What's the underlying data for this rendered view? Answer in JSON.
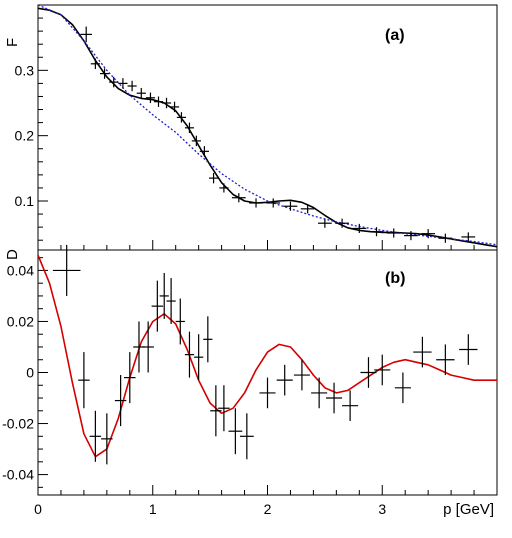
{
  "chart_data": [
    {
      "panel": "(a)",
      "type": "scatter",
      "ylabel": "F",
      "xlim": [
        0,
        4.0
      ],
      "ylim": [
        0.025,
        0.4
      ],
      "yticks": [
        0.1,
        0.2,
        0.3
      ],
      "ytick_labels": [
        "0.1",
        "0.2",
        "0.3"
      ],
      "points": [
        {
          "x": 0.42,
          "y": 0.355,
          "xerr": 0.05,
          "yerr": 0.012
        },
        {
          "x": 0.5,
          "y": 0.31,
          "xerr": 0.04,
          "yerr": 0.008
        },
        {
          "x": 0.58,
          "y": 0.295,
          "xerr": 0.04,
          "yerr": 0.008
        },
        {
          "x": 0.66,
          "y": 0.282,
          "xerr": 0.04,
          "yerr": 0.008
        },
        {
          "x": 0.74,
          "y": 0.28,
          "xerr": 0.04,
          "yerr": 0.008
        },
        {
          "x": 0.82,
          "y": 0.276,
          "xerr": 0.04,
          "yerr": 0.008
        },
        {
          "x": 0.9,
          "y": 0.265,
          "xerr": 0.04,
          "yerr": 0.008
        },
        {
          "x": 0.98,
          "y": 0.258,
          "xerr": 0.04,
          "yerr": 0.008
        },
        {
          "x": 1.05,
          "y": 0.252,
          "xerr": 0.04,
          "yerr": 0.008
        },
        {
          "x": 1.12,
          "y": 0.25,
          "xerr": 0.04,
          "yerr": 0.008
        },
        {
          "x": 1.19,
          "y": 0.244,
          "xerr": 0.04,
          "yerr": 0.008
        },
        {
          "x": 1.25,
          "y": 0.228,
          "xerr": 0.04,
          "yerr": 0.008
        },
        {
          "x": 1.32,
          "y": 0.212,
          "xerr": 0.04,
          "yerr": 0.008
        },
        {
          "x": 1.38,
          "y": 0.192,
          "xerr": 0.04,
          "yerr": 0.008
        },
        {
          "x": 1.45,
          "y": 0.176,
          "xerr": 0.04,
          "yerr": 0.008
        },
        {
          "x": 1.53,
          "y": 0.135,
          "xerr": 0.04,
          "yerr": 0.008
        },
        {
          "x": 1.62,
          "y": 0.12,
          "xerr": 0.04,
          "yerr": 0.007
        },
        {
          "x": 1.75,
          "y": 0.105,
          "xerr": 0.06,
          "yerr": 0.007
        },
        {
          "x": 1.9,
          "y": 0.097,
          "xerr": 0.06,
          "yerr": 0.007
        },
        {
          "x": 2.05,
          "y": 0.097,
          "xerr": 0.06,
          "yerr": 0.007
        },
        {
          "x": 2.2,
          "y": 0.092,
          "xerr": 0.06,
          "yerr": 0.007
        },
        {
          "x": 2.35,
          "y": 0.088,
          "xerr": 0.06,
          "yerr": 0.007
        },
        {
          "x": 2.5,
          "y": 0.066,
          "xerr": 0.06,
          "yerr": 0.007
        },
        {
          "x": 2.65,
          "y": 0.066,
          "xerr": 0.06,
          "yerr": 0.007
        },
        {
          "x": 2.8,
          "y": 0.058,
          "xerr": 0.06,
          "yerr": 0.007
        },
        {
          "x": 2.95,
          "y": 0.053,
          "xerr": 0.06,
          "yerr": 0.007
        },
        {
          "x": 3.1,
          "y": 0.051,
          "xerr": 0.06,
          "yerr": 0.007
        },
        {
          "x": 3.25,
          "y": 0.047,
          "xerr": 0.06,
          "yerr": 0.007
        },
        {
          "x": 3.4,
          "y": 0.05,
          "xerr": 0.06,
          "yerr": 0.007
        },
        {
          "x": 3.55,
          "y": 0.043,
          "xerr": 0.06,
          "yerr": 0.007
        },
        {
          "x": 3.75,
          "y": 0.045,
          "xerr": 0.06,
          "yerr": 0.007
        }
      ],
      "curves": [
        {
          "style": "solid",
          "color": "#000000",
          "x": [
            0.0,
            0.1,
            0.2,
            0.3,
            0.4,
            0.5,
            0.6,
            0.7,
            0.8,
            0.9,
            1.0,
            1.1,
            1.2,
            1.3,
            1.4,
            1.5,
            1.6,
            1.7,
            1.8,
            1.9,
            2.0,
            2.1,
            2.2,
            2.3,
            2.4,
            2.5,
            2.6,
            2.7,
            2.8,
            2.9,
            3.0,
            3.1,
            3.2,
            3.3,
            3.4,
            3.5,
            3.6,
            3.7,
            3.8,
            3.9,
            4.0
          ],
          "y": [
            0.395,
            0.392,
            0.385,
            0.37,
            0.345,
            0.315,
            0.29,
            0.272,
            0.262,
            0.257,
            0.255,
            0.25,
            0.238,
            0.215,
            0.185,
            0.155,
            0.128,
            0.11,
            0.1,
            0.097,
            0.098,
            0.1,
            0.101,
            0.098,
            0.09,
            0.078,
            0.067,
            0.059,
            0.055,
            0.053,
            0.052,
            0.052,
            0.051,
            0.05,
            0.048,
            0.045,
            0.042,
            0.039,
            0.036,
            0.033,
            0.03
          ]
        },
        {
          "style": "dotted",
          "color": "#1f1fcf",
          "x": [
            0.0,
            0.2,
            0.4,
            0.6,
            0.8,
            1.0,
            1.2,
            1.4,
            1.6,
            1.8,
            2.0,
            2.2,
            2.4,
            2.6,
            2.8,
            3.0,
            3.2,
            3.4,
            3.6,
            3.8,
            4.0
          ],
          "y": [
            0.4,
            0.385,
            0.345,
            0.3,
            0.262,
            0.232,
            0.205,
            0.172,
            0.142,
            0.118,
            0.1,
            0.088,
            0.077,
            0.068,
            0.061,
            0.055,
            0.05,
            0.046,
            0.042,
            0.038,
            0.033
          ]
        }
      ]
    },
    {
      "panel": "(b)",
      "type": "scatter",
      "ylabel": "D",
      "xlabel": "p [GeV]",
      "xlim": [
        0,
        4.0
      ],
      "ylim": [
        -0.048,
        0.048
      ],
      "xticks": [
        0,
        1,
        2,
        3
      ],
      "xtick_labels": [
        "0",
        "1",
        "2",
        "3"
      ],
      "yticks": [
        -0.04,
        -0.02,
        0,
        0.02,
        0.04
      ],
      "ytick_labels": [
        "-0.04",
        "-0.02",
        "0",
        "0.02",
        "0.04"
      ],
      "points": [
        {
          "x": 0.25,
          "y": 0.04,
          "xerr": 0.12,
          "yerr": 0.01
        },
        {
          "x": 0.4,
          "y": -0.003,
          "xerr": 0.05,
          "yerr": 0.011
        },
        {
          "x": 0.5,
          "y": -0.025,
          "xerr": 0.05,
          "yerr": 0.01
        },
        {
          "x": 0.6,
          "y": -0.026,
          "xerr": 0.05,
          "yerr": 0.01
        },
        {
          "x": 0.72,
          "y": -0.011,
          "xerr": 0.05,
          "yerr": 0.01
        },
        {
          "x": 0.8,
          "y": -0.002,
          "xerr": 0.05,
          "yerr": 0.01
        },
        {
          "x": 0.88,
          "y": 0.01,
          "xerr": 0.05,
          "yerr": 0.01
        },
        {
          "x": 0.96,
          "y": 0.01,
          "xerr": 0.05,
          "yerr": 0.01
        },
        {
          "x": 1.04,
          "y": 0.026,
          "xerr": 0.05,
          "yerr": 0.01
        },
        {
          "x": 1.1,
          "y": 0.03,
          "xerr": 0.04,
          "yerr": 0.009
        },
        {
          "x": 1.16,
          "y": 0.028,
          "xerr": 0.04,
          "yerr": 0.009
        },
        {
          "x": 1.24,
          "y": 0.02,
          "xerr": 0.04,
          "yerr": 0.009
        },
        {
          "x": 1.32,
          "y": 0.007,
          "xerr": 0.04,
          "yerr": 0.009
        },
        {
          "x": 1.4,
          "y": 0.006,
          "xerr": 0.04,
          "yerr": 0.009
        },
        {
          "x": 1.48,
          "y": 0.013,
          "xerr": 0.04,
          "yerr": 0.009
        },
        {
          "x": 1.55,
          "y": -0.015,
          "xerr": 0.05,
          "yerr": 0.01
        },
        {
          "x": 1.62,
          "y": -0.014,
          "xerr": 0.05,
          "yerr": 0.009
        },
        {
          "x": 1.72,
          "y": -0.023,
          "xerr": 0.06,
          "yerr": 0.009
        },
        {
          "x": 1.82,
          "y": -0.025,
          "xerr": 0.06,
          "yerr": 0.009
        },
        {
          "x": 2.0,
          "y": -0.008,
          "xerr": 0.07,
          "yerr": 0.006
        },
        {
          "x": 2.15,
          "y": -0.003,
          "xerr": 0.07,
          "yerr": 0.006
        },
        {
          "x": 2.3,
          "y": -0.001,
          "xerr": 0.07,
          "yerr": 0.006
        },
        {
          "x": 2.45,
          "y": -0.008,
          "xerr": 0.07,
          "yerr": 0.006
        },
        {
          "x": 2.58,
          "y": -0.01,
          "xerr": 0.07,
          "yerr": 0.006
        },
        {
          "x": 2.72,
          "y": -0.013,
          "xerr": 0.07,
          "yerr": 0.006
        },
        {
          "x": 2.88,
          "y": 0.0,
          "xerr": 0.07,
          "yerr": 0.006
        },
        {
          "x": 3.0,
          "y": 0.001,
          "xerr": 0.07,
          "yerr": 0.006
        },
        {
          "x": 3.18,
          "y": -0.006,
          "xerr": 0.07,
          "yerr": 0.006
        },
        {
          "x": 3.35,
          "y": 0.008,
          "xerr": 0.08,
          "yerr": 0.006
        },
        {
          "x": 3.55,
          "y": 0.005,
          "xerr": 0.08,
          "yerr": 0.006
        },
        {
          "x": 3.75,
          "y": 0.009,
          "xerr": 0.08,
          "yerr": 0.006
        }
      ],
      "curves": [
        {
          "style": "solid",
          "color": "#d40000",
          "x": [
            0.0,
            0.1,
            0.2,
            0.3,
            0.4,
            0.5,
            0.6,
            0.7,
            0.8,
            0.9,
            1.0,
            1.1,
            1.2,
            1.3,
            1.4,
            1.5,
            1.6,
            1.7,
            1.8,
            1.9,
            2.0,
            2.1,
            2.2,
            2.3,
            2.4,
            2.5,
            2.6,
            2.7,
            2.8,
            2.9,
            3.0,
            3.1,
            3.2,
            3.3,
            3.4,
            3.5,
            3.6,
            3.7,
            3.8,
            3.9,
            4.0
          ],
          "y": [
            0.046,
            0.035,
            0.018,
            -0.004,
            -0.024,
            -0.033,
            -0.03,
            -0.018,
            -0.002,
            0.012,
            0.02,
            0.023,
            0.019,
            0.009,
            -0.003,
            -0.012,
            -0.016,
            -0.014,
            -0.008,
            0.001,
            0.008,
            0.011,
            0.01,
            0.005,
            -0.001,
            -0.006,
            -0.008,
            -0.007,
            -0.004,
            -0.001,
            0.002,
            0.004,
            0.005,
            0.004,
            0.003,
            0.001,
            -0.001,
            -0.002,
            -0.003,
            -0.003,
            -0.003
          ]
        }
      ]
    }
  ]
}
